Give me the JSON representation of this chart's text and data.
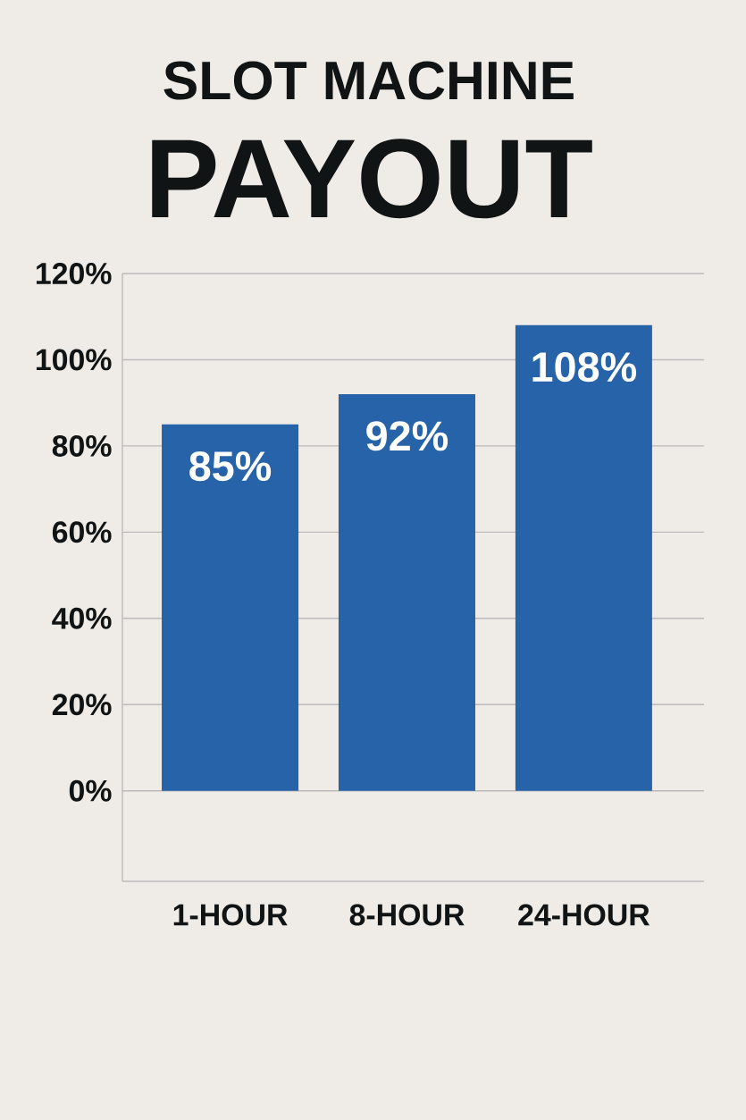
{
  "chart_data": {
    "type": "bar",
    "title": "SLOT MACHINE",
    "subtitle": "PAYOUT",
    "categories": [
      "1-HOUR",
      "8-HOUR",
      "24-HOUR"
    ],
    "values": [
      85,
      92,
      108
    ],
    "value_labels": [
      "85%",
      "92%",
      "108%"
    ],
    "color": "#2763a8",
    "ylim": [
      -21,
      120
    ],
    "yticks": [
      {
        "value": 0,
        "label": "0%"
      },
      {
        "value": 20,
        "label": "20%"
      },
      {
        "value": 40,
        "label": "40%"
      },
      {
        "value": 60,
        "label": "60%"
      },
      {
        "value": 80,
        "label": "80%"
      },
      {
        "value": 100,
        "label": "100%"
      },
      {
        "value": 120,
        "label": "120%"
      }
    ],
    "grid": "y"
  }
}
